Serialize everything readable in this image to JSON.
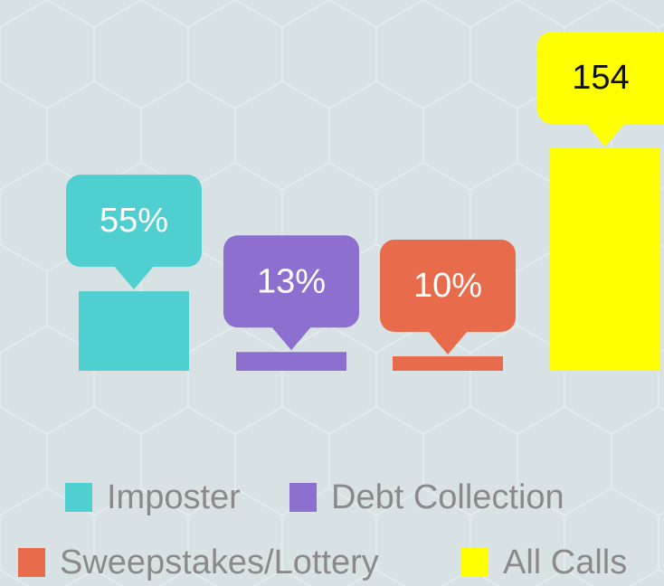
{
  "chart_data": {
    "type": "bar",
    "categories": [
      "Imposter",
      "Debt Collection",
      "Sweepstakes/Lottery",
      "All Calls"
    ],
    "values": [
      55,
      13,
      10,
      154
    ],
    "value_labels": [
      "55%",
      "13%",
      "10%",
      "154"
    ],
    "colors": [
      "#4fcfcf",
      "#8c6fcf",
      "#e86b4c",
      "#ffff00"
    ],
    "legend": "bottom"
  }
}
